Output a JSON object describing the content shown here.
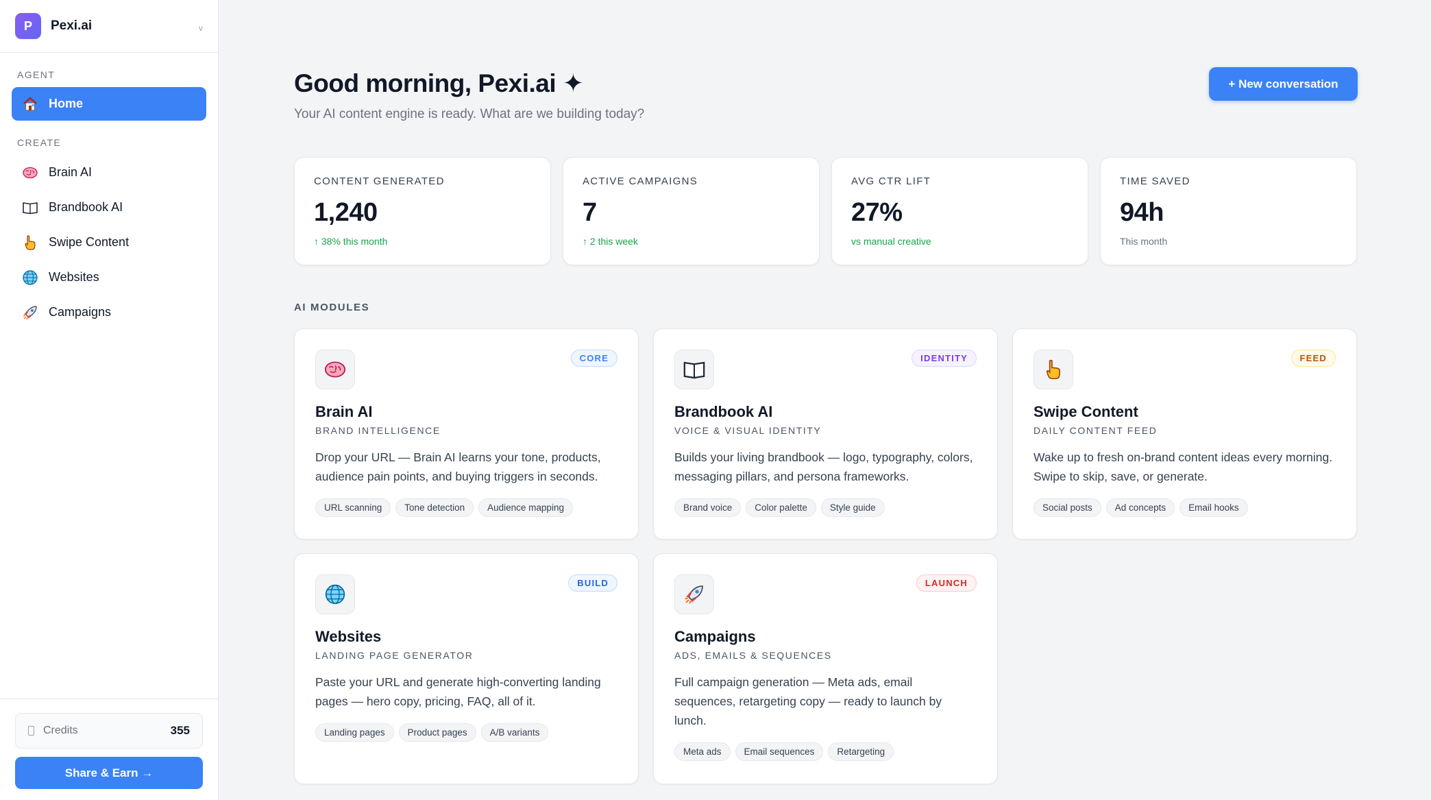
{
  "workspace": {
    "initial": "P",
    "name": "Pexi.ai",
    "chevron": "v"
  },
  "sidebar": {
    "agent_label": "AGENT",
    "home": {
      "label": "Home",
      "icon": "house-icon"
    },
    "create_label": "CREATE",
    "items": [
      {
        "label": "Brain AI",
        "icon": "brain-icon"
      },
      {
        "label": "Brandbook AI",
        "icon": "book-icon"
      },
      {
        "label": "Swipe Content",
        "icon": "pointing-hand-icon"
      },
      {
        "label": "Websites",
        "icon": "globe-icon"
      },
      {
        "label": "Campaigns",
        "icon": "rocket-icon"
      }
    ],
    "credits_label": "Credits",
    "credits_value": "355",
    "share_label": "Share & Earn →"
  },
  "header": {
    "greeting": "Good morning, Pexi.ai ✦",
    "subtitle": "Your AI content engine is ready. What are we building today?",
    "new_conversation": "+ New conversation"
  },
  "stats": [
    {
      "label": "CONTENT GENERATED",
      "value": "1,240",
      "note": "↑ 38% this month",
      "tone": "green"
    },
    {
      "label": "ACTIVE CAMPAIGNS",
      "value": "7",
      "note": "↑ 2 this week",
      "tone": "green"
    },
    {
      "label": "AVG CTR LIFT",
      "value": "27%",
      "note": "vs manual creative",
      "tone": "green"
    },
    {
      "label": "TIME SAVED",
      "value": "94h",
      "note": "This month",
      "tone": "gray"
    }
  ],
  "modules_label": "AI MODULES",
  "modules": [
    {
      "title": "Brain AI",
      "subtitle": "BRAND INTELLIGENCE",
      "badge": "CORE",
      "icon": "brain-icon",
      "description": "Drop your URL — Brain AI learns your tone, products, audience pain points, and buying triggers in seconds.",
      "tags": [
        "URL scanning",
        "Tone detection",
        "Audience mapping"
      ]
    },
    {
      "title": "Brandbook AI",
      "subtitle": "VOICE & VISUAL IDENTITY",
      "badge": "IDENTITY",
      "icon": "book-icon",
      "description": "Builds your living brandbook — logo, typography, colors, messaging pillars, and persona frameworks.",
      "tags": [
        "Brand voice",
        "Color palette",
        "Style guide"
      ]
    },
    {
      "title": "Swipe Content",
      "subtitle": "DAILY CONTENT FEED",
      "badge": "FEED",
      "icon": "pointing-hand-icon",
      "description": "Wake up to fresh on-brand content ideas every morning. Swipe to skip, save, or generate.",
      "tags": [
        "Social posts",
        "Ad concepts",
        "Email hooks"
      ]
    },
    {
      "title": "Websites",
      "subtitle": "LANDING PAGE GENERATOR",
      "badge": "BUILD",
      "icon": "globe-icon",
      "description": "Paste your URL and generate high-converting landing pages — hero copy, pricing, FAQ, all of it.",
      "tags": [
        "Landing pages",
        "Product pages",
        "A/B variants"
      ]
    },
    {
      "title": "Campaigns",
      "subtitle": "ADS, EMAILS & SEQUENCES",
      "badge": "LAUNCH",
      "icon": "rocket-icon",
      "description": "Full campaign generation — Meta ads, email sequences, retargeting copy — ready to launch by lunch.",
      "tags": [
        "Meta ads",
        "Email sequences",
        "Retargeting"
      ]
    }
  ]
}
